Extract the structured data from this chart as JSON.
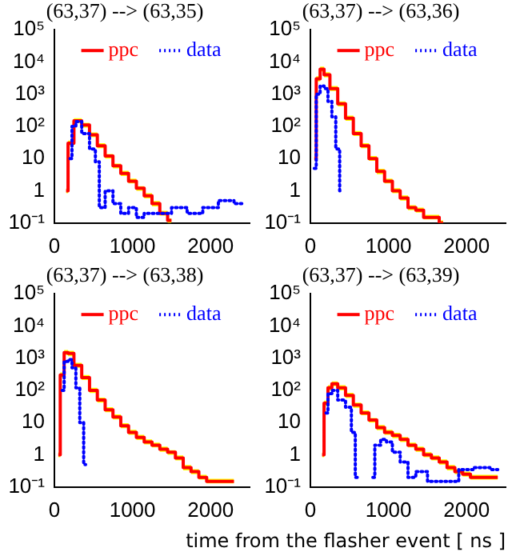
{
  "chart_data": [
    {
      "type": "step",
      "title": "(63,37) --> (63,35)",
      "xlim": [
        0,
        2500
      ],
      "xticks": [
        0,
        1000,
        2000
      ],
      "ylim": [
        0.1,
        100000
      ],
      "log": "y",
      "yticks": [
        {
          "value": 0.1,
          "label": "10⁻¹"
        },
        {
          "value": 1,
          "label": "1"
        },
        {
          "value": 10,
          "label": "10"
        },
        {
          "value": 100,
          "label": "10²"
        },
        {
          "value": 1000,
          "label": "10³"
        },
        {
          "value": 10000,
          "label": "10⁴"
        },
        {
          "value": 100000,
          "label": "10⁵"
        }
      ],
      "legend": "top",
      "grid": false,
      "series": [
        {
          "name": "ppc",
          "color": "#ff0000",
          "line_style": "solid",
          "x": [
            150,
            200,
            300,
            400,
            500,
            600,
            700,
            800,
            900,
            1000,
            1100,
            1200,
            1300,
            1400,
            1500
          ],
          "values": [
            1,
            30,
            150,
            110,
            55,
            25,
            12,
            6,
            3.5,
            2,
            1.2,
            0.7,
            0.4,
            0.2,
            0.12
          ],
          "upper": [
            1.2,
            36,
            180,
            130,
            65,
            30,
            14,
            7,
            4.2,
            2.4,
            1.4,
            0.85,
            0.48,
            0.24,
            0.14
          ],
          "lower": [
            0.85,
            25,
            125,
            92,
            46,
            21,
            10,
            5,
            2.9,
            1.7,
            1,
            0.58,
            0.33,
            0.17,
            0.1
          ]
        },
        {
          "name": "data",
          "color": "#0000ff",
          "line_style": "dotted",
          "x": [
            200,
            250,
            300,
            400,
            500,
            550,
            600,
            700,
            800,
            900,
            1000,
            1100,
            1200,
            1400,
            1600,
            1800,
            2000,
            2200,
            2400
          ],
          "values": [
            10,
            100,
            140,
            60,
            20,
            8,
            0.3,
            1,
            0.4,
            0.2,
            0.3,
            0.15,
            0.2,
            0.2,
            0.3,
            0.2,
            0.3,
            0.5,
            0.4
          ]
        }
      ]
    },
    {
      "type": "step",
      "title": "(63,37) --> (63,36)",
      "xlim": [
        0,
        2500
      ],
      "xticks": [
        0,
        1000,
        2000
      ],
      "ylim": [
        0.1,
        100000
      ],
      "log": "y",
      "yticks": [
        {
          "value": 0.1,
          "label": "10⁻¹"
        },
        {
          "value": 1,
          "label": "1"
        },
        {
          "value": 10,
          "label": "10"
        },
        {
          "value": 100,
          "label": "10²"
        },
        {
          "value": 1000,
          "label": "10³"
        },
        {
          "value": 10000,
          "label": "10⁴"
        },
        {
          "value": 100000,
          "label": "10⁵"
        }
      ],
      "legend": "top",
      "grid": false,
      "series": [
        {
          "name": "ppc",
          "color": "#ff0000",
          "line_style": "solid",
          "x": [
            50,
            100,
            150,
            200,
            300,
            400,
            500,
            600,
            700,
            800,
            900,
            1000,
            1100,
            1200,
            1300,
            1400,
            1500,
            1600,
            1700
          ],
          "values": [
            10,
            3000,
            6000,
            4000,
            1500,
            500,
            180,
            60,
            25,
            10,
            4,
            2,
            1,
            0.6,
            0.3,
            0.25,
            0.15,
            0.15,
            0.1
          ],
          "upper": [
            12,
            3600,
            7200,
            4800,
            1800,
            600,
            215,
            72,
            30,
            12,
            4.8,
            2.4,
            1.2,
            0.72,
            0.36,
            0.3,
            0.18,
            0.18,
            0.12
          ],
          "lower": [
            8.5,
            2500,
            5000,
            3300,
            1250,
            420,
            150,
            50,
            21,
            8.5,
            3.3,
            1.7,
            0.85,
            0.5,
            0.25,
            0.21,
            0.13,
            0.13,
            0.1
          ]
        },
        {
          "name": "data",
          "color": "#0000ff",
          "line_style": "dotted",
          "x": [
            50,
            100,
            150,
            200,
            250,
            300,
            350,
            400
          ],
          "values": [
            5,
            1000,
            1800,
            1500,
            600,
            200,
            20,
            1
          ]
        }
      ]
    },
    {
      "type": "step",
      "title": "(63,37) --> (63,38)",
      "xlim": [
        0,
        2500
      ],
      "xticks": [
        0,
        1000,
        2000
      ],
      "ylim": [
        0.1,
        100000
      ],
      "log": "y",
      "yticks": [
        {
          "value": 0.1,
          "label": "10⁻¹"
        },
        {
          "value": 1,
          "label": "1"
        },
        {
          "value": 10,
          "label": "10"
        },
        {
          "value": 100,
          "label": "10²"
        },
        {
          "value": 1000,
          "label": "10³"
        },
        {
          "value": 10000,
          "label": "10⁴"
        },
        {
          "value": 100000,
          "label": "10⁵"
        }
      ],
      "legend": "top",
      "grid": false,
      "series": [
        {
          "name": "ppc",
          "color": "#ff0000",
          "line_style": "solid",
          "x": [
            50,
            100,
            150,
            200,
            300,
            400,
            500,
            600,
            700,
            800,
            900,
            1000,
            1100,
            1200,
            1300,
            1400,
            1500,
            1600,
            1700,
            1800,
            1900,
            2000,
            2100,
            2300
          ],
          "values": [
            1,
            300,
            1500,
            1400,
            600,
            250,
            100,
            50,
            25,
            15,
            8,
            5,
            3.5,
            2.5,
            2,
            1.5,
            1.2,
            0.8,
            0.4,
            0.3,
            0.2,
            0.15,
            0.15,
            0.15
          ],
          "upper": [
            1.2,
            360,
            1800,
            1700,
            720,
            300,
            120,
            60,
            30,
            18,
            9.6,
            6,
            4.2,
            3,
            2.4,
            1.8,
            1.4,
            0.96,
            0.48,
            0.36,
            0.24,
            0.18,
            0.18,
            0.18
          ],
          "lower": [
            0.85,
            250,
            1250,
            1150,
            500,
            210,
            83,
            42,
            21,
            12.5,
            6.7,
            4.2,
            2.9,
            2.1,
            1.7,
            1.25,
            1,
            0.67,
            0.33,
            0.25,
            0.17,
            0.13,
            0.13,
            0.13
          ]
        },
        {
          "name": "data",
          "color": "#0000ff",
          "line_style": "dotted",
          "x": [
            100,
            150,
            200,
            250,
            300,
            350,
            400
          ],
          "values": [
            100,
            800,
            900,
            500,
            120,
            10,
            0.5
          ]
        }
      ]
    },
    {
      "type": "step",
      "title": "(63,37) --> (63,39)",
      "xlabel": "time from the flasher event [ ns ]",
      "xlim": [
        0,
        2500
      ],
      "xticks": [
        0,
        1000,
        2000
      ],
      "ylim": [
        0.1,
        100000
      ],
      "log": "y",
      "yticks": [
        {
          "value": 0.1,
          "label": "10⁻¹"
        },
        {
          "value": 1,
          "label": "1"
        },
        {
          "value": 10,
          "label": "10"
        },
        {
          "value": 100,
          "label": "10²"
        },
        {
          "value": 1000,
          "label": "10³"
        },
        {
          "value": 10000,
          "label": "10⁴"
        },
        {
          "value": 100000,
          "label": "10⁵"
        }
      ],
      "legend": "top",
      "grid": false,
      "series": [
        {
          "name": "ppc",
          "color": "#ff0000",
          "line_style": "solid",
          "x": [
            150,
            200,
            250,
            300,
            400,
            500,
            600,
            700,
            800,
            900,
            1000,
            1100,
            1200,
            1300,
            1400,
            1500,
            1600,
            1700,
            1800,
            1900,
            2000,
            2100,
            2200,
            2300,
            2400
          ],
          "values": [
            1,
            40,
            120,
            160,
            120,
            70,
            35,
            20,
            12,
            7,
            5,
            4,
            3,
            2,
            1.5,
            1,
            0.8,
            0.6,
            0.4,
            0.3,
            0.25,
            0.2,
            0.2,
            0.2,
            0.2
          ],
          "upper": [
            1.2,
            48,
            145,
            190,
            145,
            84,
            42,
            24,
            14,
            8.4,
            6,
            4.8,
            3.6,
            2.4,
            1.8,
            1.2,
            0.96,
            0.72,
            0.48,
            0.36,
            0.3,
            0.24,
            0.24,
            0.24,
            0.24
          ],
          "lower": [
            0.85,
            33,
            100,
            135,
            100,
            58,
            29,
            17,
            10,
            5.8,
            4.2,
            3.3,
            2.5,
            1.7,
            1.25,
            0.85,
            0.67,
            0.5,
            0.33,
            0.25,
            0.21,
            0.17,
            0.17,
            0.17,
            0.17
          ]
        },
        {
          "name": "data",
          "color": "#0000ff",
          "line_style": "dotted",
          "x": [
            200,
            250,
            300,
            400,
            500,
            550,
            600,
            650,
            800,
            850,
            950,
            1000,
            1100,
            1200,
            1300,
            1400,
            1600,
            1800,
            2000,
            2200,
            2400
          ],
          "values": [
            20,
            80,
            100,
            50,
            30,
            5,
            0.2,
            null,
            0.2,
            2,
            3,
            2.5,
            1.2,
            0.6,
            0.2,
            0.3,
            0.15,
            0.15,
            0.35,
            0.4,
            0.35
          ]
        }
      ]
    }
  ]
}
